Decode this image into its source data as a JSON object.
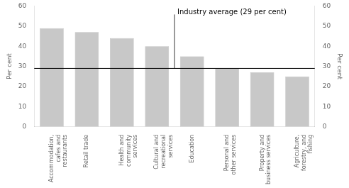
{
  "chart_data": {
    "type": "bar",
    "categories": [
      "Accommodation,\ncafes and\nrestaurants",
      "Retail trade",
      "Health and\ncommunity\nservices",
      "Cultural and\nrecreational\nservices",
      "Education",
      "Personal and\nother services",
      "Property and\nbusiness services",
      "Agriculture,\nforestry, and\nfishing"
    ],
    "values": [
      49,
      47,
      44,
      40,
      35,
      29,
      27,
      25
    ],
    "color": "#c8c8c8",
    "ylabel": "Per cent",
    "y2label": "Per cent",
    "ylim": [
      0,
      60
    ],
    "yticks": [
      0,
      10,
      20,
      30,
      40,
      50,
      60
    ],
    "y2lim": [
      0,
      60
    ],
    "y2ticks": [
      0,
      10,
      20,
      30,
      40,
      50,
      60
    ],
    "grid": false,
    "reference_line": {
      "y": 29,
      "label": "Industry average (29 per cent)"
    }
  }
}
